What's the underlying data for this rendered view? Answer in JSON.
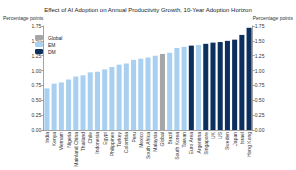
{
  "chart_data": {
    "type": "bar",
    "title": "Effect of AI Adoption on Annual Productivity Growth, 10-Year Adoption Horizon",
    "y_label": "Percentage points",
    "y2_label": "Percentage points",
    "categories": [
      "India",
      "Kenya",
      "Vietnam",
      "Nigeria",
      "Mainland China",
      "Thailand",
      "Chile",
      "Indonesia",
      "Egypt",
      "Philippines",
      "Turkey",
      "Colombia",
      "Peru",
      "Mexico",
      "South Africa",
      "Malaysia",
      "Global",
      "Brazil",
      "South Korea",
      "Taiwan",
      "Euro Area",
      "Argentina",
      "Singapore",
      "UK",
      "US",
      "Sweden",
      "Japan",
      "Israel",
      "Hong Kong"
    ],
    "series": [
      {
        "name": "Global",
        "color": "#a6a6a6",
        "values": [
          null,
          null,
          null,
          null,
          null,
          null,
          null,
          null,
          null,
          null,
          null,
          null,
          null,
          null,
          null,
          null,
          1.28,
          null,
          null,
          null,
          null,
          null,
          null,
          null,
          null,
          null,
          null,
          null,
          null
        ]
      },
      {
        "name": "EM",
        "color": "#a9d0f0",
        "values": [
          0.7,
          0.78,
          0.8,
          0.85,
          0.9,
          0.92,
          0.97,
          0.98,
          1.02,
          1.06,
          1.1,
          1.12,
          1.18,
          1.2,
          1.22,
          1.25,
          null,
          1.3,
          1.38,
          1.4,
          null,
          1.43,
          null,
          null,
          null,
          null,
          null,
          null,
          null
        ]
      },
      {
        "name": "DM",
        "color": "#0d2f5e",
        "values": [
          null,
          null,
          null,
          null,
          null,
          null,
          null,
          null,
          null,
          null,
          null,
          null,
          null,
          null,
          null,
          null,
          null,
          null,
          null,
          null,
          1.42,
          null,
          1.45,
          1.47,
          1.48,
          1.5,
          1.52,
          1.6,
          1.72
        ]
      }
    ],
    "ylim": [
      0,
      1.75
    ],
    "yticks": [
      {
        "value": 0,
        "label": "0.00"
      },
      {
        "value": 0.25,
        "label": "0.25"
      },
      {
        "value": 0.5,
        "label": "0.50"
      },
      {
        "value": 0.75,
        "label": "0.75"
      },
      {
        "value": 1,
        "label": "1.00"
      },
      {
        "value": 1.25,
        "label": "1.25"
      },
      {
        "value": 1.5,
        "label": "1.50"
      },
      {
        "value": 1.75,
        "label": "1.75"
      }
    ],
    "y2lim": [
      0,
      1.75
    ],
    "y2ticks": [
      {
        "value": 0,
        "label": "0.00"
      },
      {
        "value": 0.25,
        "label": "0.25"
      },
      {
        "value": 0.5,
        "label": "0.50"
      },
      {
        "value": 0.75,
        "label": "0.75"
      },
      {
        "value": 1,
        "label": "1.00"
      },
      {
        "value": 1.25,
        "label": "1.25"
      },
      {
        "value": 1.5,
        "label": "1.50"
      },
      {
        "value": 1.75,
        "label": "1.75"
      }
    ],
    "stacked": true,
    "grid": false,
    "legend": "top-left"
  }
}
